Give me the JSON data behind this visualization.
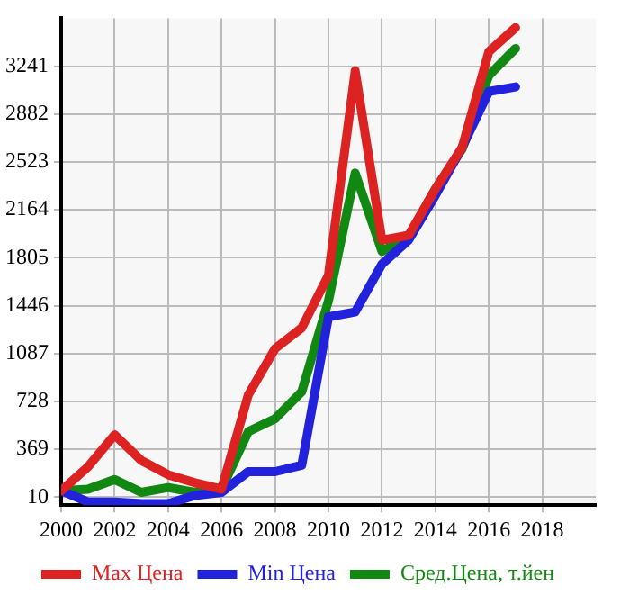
{
  "chart_data": {
    "type": "line",
    "x": [
      2000,
      2001,
      2002,
      2003,
      2004,
      2005,
      2006,
      2007,
      2008,
      2009,
      2010,
      2011,
      2012,
      2013,
      2014,
      2015,
      2016,
      2017
    ],
    "series": [
      {
        "name": "Max Цена",
        "color": "#dd2222",
        "values": [
          58,
          237,
          477,
          285,
          178,
          118,
          70,
          776,
          1123,
          1279,
          1674,
          3206,
          1937,
          1973,
          2320,
          2631,
          3350,
          3530
        ]
      },
      {
        "name": "Min Цена",
        "color": "#2222dd",
        "values": [
          58,
          -26,
          -26,
          -38,
          -38,
          22,
          46,
          201,
          201,
          249,
          1362,
          1398,
          1757,
          1937,
          2272,
          2631,
          3051,
          3086
        ]
      },
      {
        "name": "Сред.Цена, т.йен",
        "color": "#118811",
        "values": [
          58,
          70,
          142,
          46,
          82,
          46,
          70,
          501,
          597,
          800,
          1482,
          2440,
          1853,
          1961,
          2320,
          2619,
          3171,
          3374
        ]
      }
    ],
    "xlim": [
      2000,
      2020
    ],
    "xticks": [
      2000,
      2002,
      2004,
      2006,
      2008,
      2010,
      2012,
      2014,
      2016,
      2018
    ],
    "ylim": [
      -50,
      3600
    ],
    "yticks": [
      10,
      369,
      728,
      1087,
      1446,
      1805,
      2164,
      2523,
      2882,
      3241
    ],
    "grid": true,
    "legend": "bottom",
    "marker": "none",
    "line_style": "solid"
  }
}
